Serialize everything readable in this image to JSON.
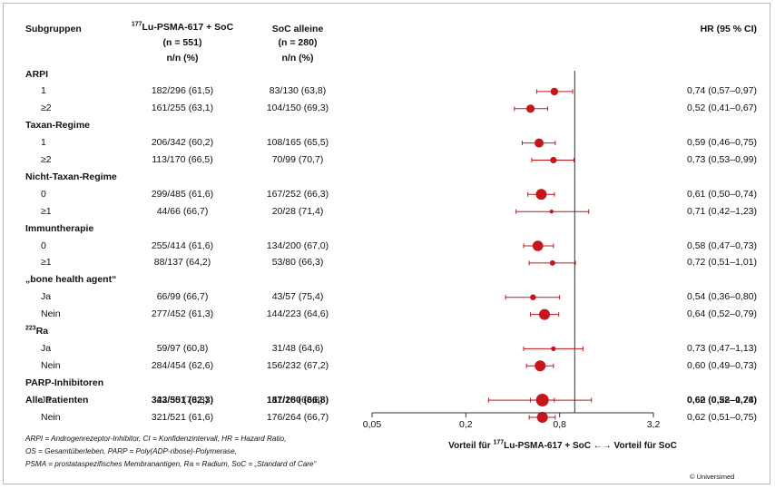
{
  "header": {
    "col_subgroups": "Subgruppen",
    "col_lu_sup": "177",
    "col_lu_title": "Lu-PSMA-617 + SoC",
    "col_lu_n": "(n = 551)",
    "col_lu_unit": "n/n (%)",
    "col_soc_title": "SoC alleine",
    "col_soc_n": "(n = 280)",
    "col_soc_unit": "n/n (%)",
    "col_hr": "HR (95 % CI)"
  },
  "chart_data": {
    "type": "forest",
    "x_scale": "log",
    "xlim": [
      0.05,
      3.2
    ],
    "reference_line": 1,
    "x_ticks": [
      {
        "value": 0.05,
        "label": "0,05"
      },
      {
        "value": 0.2,
        "label": "0,2"
      },
      {
        "value": 0.8,
        "label": "0,8"
      },
      {
        "value": 3.2,
        "label": "3,2"
      }
    ],
    "xlabel_left_prefix": "Vorteil für ",
    "xlabel_left_sup": "177",
    "xlabel_left_rest": "Lu-PSMA-617 + SoC",
    "xlabel_arrows": "←→",
    "xlabel_right": "Vorteil für SoC",
    "groups": [
      {
        "title": "ARPI",
        "rows": [
          {
            "label": "1",
            "lu": "182/296 (61,5)",
            "soc": "83/130 (63,8)",
            "hr_text": "0,74 (0,57–0,97)",
            "hr": 0.74,
            "lo": 0.57,
            "hi": 0.97,
            "size": 4.2
          },
          {
            "label": "≥2",
            "lu": "161/255 (63,1)",
            "soc": "104/150 (69,3)",
            "hr_text": "0,52 (0,41–0,67)",
            "hr": 0.52,
            "lo": 0.41,
            "hi": 0.67,
            "size": 4.6
          }
        ]
      },
      {
        "title": "Taxan-Regime",
        "rows": [
          {
            "label": "1",
            "lu": "206/342 (60,2)",
            "soc": "108/165 (65,5)",
            "hr_text": "0,59 (0,46–0,75)",
            "hr": 0.59,
            "lo": 0.46,
            "hi": 0.75,
            "size": 5
          },
          {
            "label": "≥2",
            "lu": "113/170 (66,5)",
            "soc": "70/99 (70,7)",
            "hr_text": "0,73 (0,53–0,99)",
            "hr": 0.73,
            "lo": 0.53,
            "hi": 0.99,
            "size": 3.6
          }
        ]
      },
      {
        "title": "Nicht-Taxan-Regime",
        "rows": [
          {
            "label": "0",
            "lu": "299/485 (61,6)",
            "soc": "167/252 (66,3)",
            "hr_text": "0,61 (0,50–0,74)",
            "hr": 0.61,
            "lo": 0.5,
            "hi": 0.74,
            "size": 6
          },
          {
            "label": "≥1",
            "lu": "44/66 (66,7)",
            "soc": "20/28 (71,4)",
            "hr_text": "0,71 (0,42–1,23)",
            "hr": 0.71,
            "lo": 0.42,
            "hi": 1.23,
            "size": 2.2
          }
        ]
      },
      {
        "title": "Immuntherapie",
        "rows": [
          {
            "label": "0",
            "lu": "255/414 (61,6)",
            "soc": "134/200 (67,0)",
            "hr_text": "0,58 (0,47–0,73)",
            "hr": 0.58,
            "lo": 0.47,
            "hi": 0.73,
            "size": 5.8
          },
          {
            "label": "≥1",
            "lu": "88/137 (64,2)",
            "soc": "53/80 (66,3)",
            "hr_text": "0,72 (0,51–1,01)",
            "hr": 0.72,
            "lo": 0.51,
            "hi": 1.01,
            "size": 3
          }
        ]
      },
      {
        "title": "„bone health agent“",
        "rows": [
          {
            "label": "Ja",
            "lu": "66/99 (66,7)",
            "soc": "43/57 (75,4)",
            "hr_text": "0,54 (0,36–0,80)",
            "hr": 0.54,
            "lo": 0.36,
            "hi": 0.8,
            "size": 3.2
          },
          {
            "label": "Nein",
            "lu": "277/452 (61,3)",
            "soc": "144/223 (64,6)",
            "hr_text": "0,64 (0,52–0,79)",
            "hr": 0.64,
            "lo": 0.52,
            "hi": 0.79,
            "size": 6
          }
        ]
      },
      {
        "title_sup": "223",
        "title": "Ra",
        "rows": [
          {
            "label": "Ja",
            "lu": "59/97 (60,8)",
            "soc": "31/48 (64,6)",
            "hr_text": "0,73 (0,47–1,13)",
            "hr": 0.73,
            "lo": 0.47,
            "hi": 1.13,
            "size": 2.6
          },
          {
            "label": "Nein",
            "lu": "284/454 (62,6)",
            "soc": "156/232 (67,2)",
            "hr_text": "0,60 (0,49–0,73)",
            "hr": 0.6,
            "lo": 0.49,
            "hi": 0.73,
            "size": 6
          }
        ]
      },
      {
        "title": "PARP-Inhibitoren",
        "rows": [
          {
            "label": "Ja",
            "lu": "22/30 (73,3)",
            "soc": "11/16 (68,8)",
            "hr_text": "0,60 (0,28–1,28)",
            "hr": 0.6,
            "lo": 0.28,
            "hi": 1.28,
            "size": 2
          },
          {
            "label": "Nein",
            "lu": "321/521 (61,6)",
            "soc": "176/264 (66,7)",
            "hr_text": "0,62 (0,51–0,75)",
            "hr": 0.62,
            "lo": 0.51,
            "hi": 0.75,
            "size": 6
          }
        ]
      }
    ],
    "overall": {
      "label": "Alle Patienten",
      "lu": "343/551 (62,3)",
      "soc": "187/280 (66,8)",
      "hr_text": "0,62 (0,52–0,74)",
      "hr": 0.62,
      "lo": 0.52,
      "hi": 0.74,
      "size": 7
    },
    "marker_color": "#c4161c",
    "axis_color": "#333333"
  },
  "footnotes": [
    "ARPI = Androgenrezeptor-Inhibitor, CI = Konfidenzintervall, HR = Hazard Ratio,",
    "OS = Gesamtüberleben, PARP = Poly(ADP-ribose)-Polymerase,",
    "PSMA = prostataspezifisches Membranantigen, Ra = Radium, SoC = „Standard of Care“"
  ],
  "copyright": "© Universimed"
}
